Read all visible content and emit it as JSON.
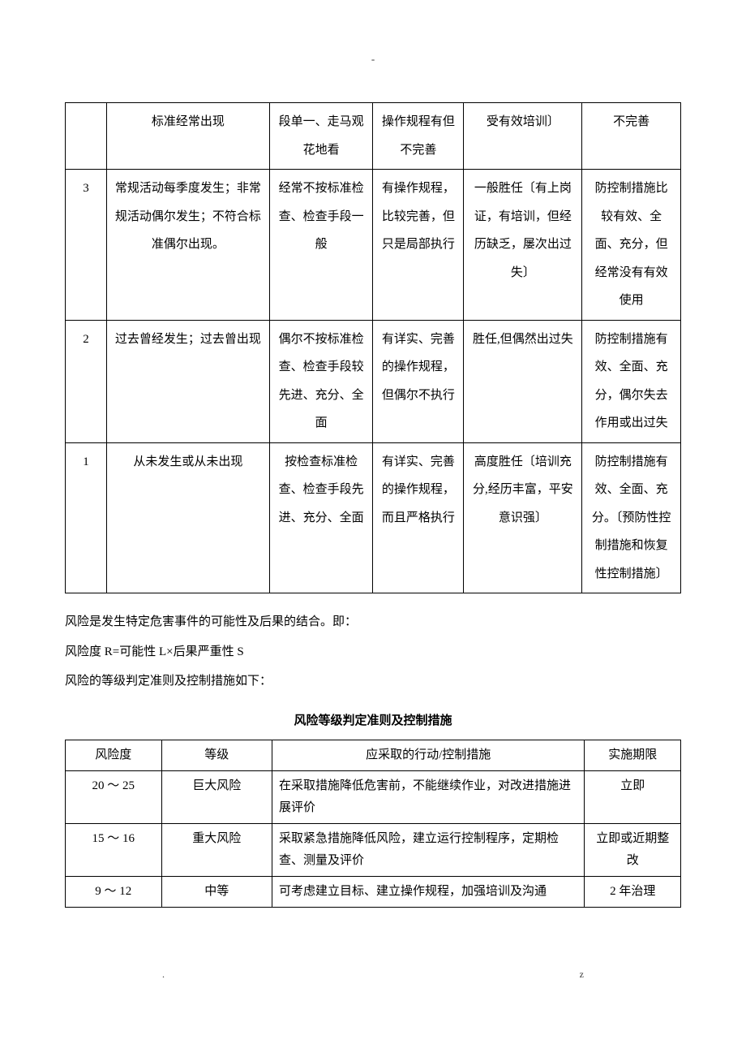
{
  "header": {
    "dash": "-"
  },
  "table1": {
    "rows": [
      {
        "num": "",
        "c1": "标准经常出现",
        "c2": "段单一、走马观花地看",
        "c3": "操作规程有但不完善",
        "c4": "受有效培训〕",
        "c5": "不完善"
      },
      {
        "num": "3",
        "c1": "常规活动每季度发生；非常规活动偶尔发生；不符合标准偶尔出现。",
        "c2": "经常不按标准检查、检查手段一般",
        "c3": "有操作规程，比较完善，但只是局部执行",
        "c4": "一般胜任〔有上岗证，有培训，但经历缺乏，屡次出过失〕",
        "c5": "防控制措施比较有效、全面、充分，但经常没有有效使用"
      },
      {
        "num": "2",
        "c1": "过去曾经发生；过去曾出现",
        "c2": "偶尔不按标准检查、检查手段较先进、充分、全面",
        "c3": "有详实、完善的操作规程，但偶尔不执行",
        "c4": "胜任,但偶然出过失",
        "c5": "防控制措施有效、全面、充分，偶尔失去作用或出过失"
      },
      {
        "num": "1",
        "c1": "从未发生或从未出现",
        "c2": "按检查标准检查、检查手段先进、充分、全面",
        "c3": "有详实、完善的操作规程，而且严格执行",
        "c4": "高度胜任〔培训充分,经历丰富，平安意识强〕",
        "c5": "防控制措施有效、全面、充分。〔预防性控制措施和恢复性控制措施〕"
      }
    ]
  },
  "paragraphs": {
    "p1": "风险是发生特定危害事件的可能性及后果的结合。即：",
    "p2": "风险度 R=可能性 L×后果严重性 S",
    "p3": "风险的等级判定准则及控制措施如下："
  },
  "title2": "风险等级判定准则及控制措施",
  "table2": {
    "header": {
      "h1": "风险度",
      "h2": "等级",
      "h3": "应采取的行动/控制措施",
      "h4": "实施期限"
    },
    "rows": [
      {
        "c1": "20 ～ 25",
        "c2": "巨大风险",
        "c3": "在采取措施降低危害前，不能继续作业，对改进措施进展评价",
        "c4": "立即"
      },
      {
        "c1": "15 ～ 16",
        "c2": "重大风险",
        "c3": "采取紧急措施降低风险，建立运行控制程序，定期检查、测量及评价",
        "c4": "立即或近期整改"
      },
      {
        "c1": "9 ～ 12",
        "c2": "中等",
        "c3": "可考虑建立目标、建立操作规程，加强培训及沟通",
        "c4": "2 年治理"
      }
    ]
  },
  "footer": {
    "left": ".",
    "right": "z"
  }
}
